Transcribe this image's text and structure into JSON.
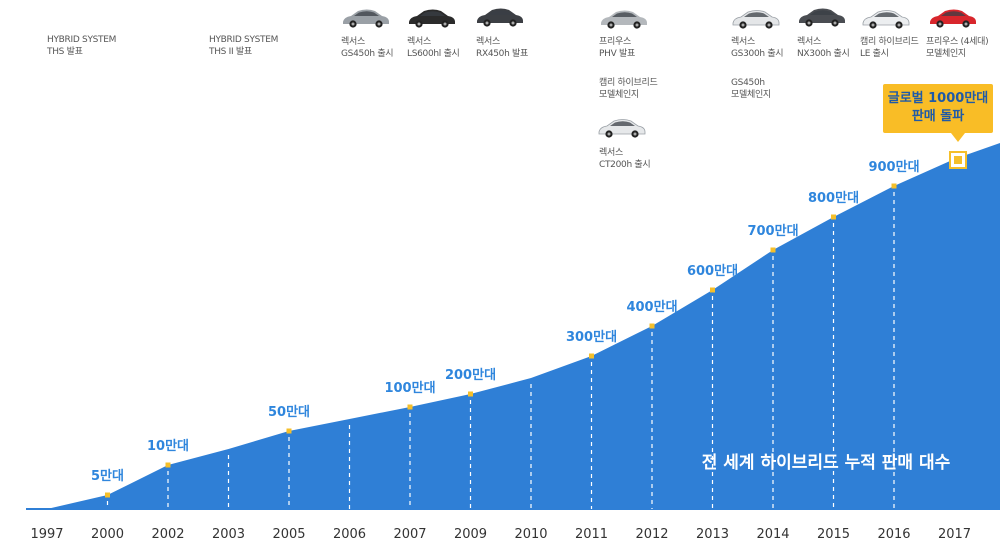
{
  "chart_data": {
    "type": "area",
    "title": "전 세계 하이브리드 누적 판매 대수",
    "x_categories": [
      "1997",
      "2000",
      "2002",
      "2003",
      "2005",
      "2006",
      "2007",
      "2009",
      "2010",
      "2011",
      "2012",
      "2013",
      "2014",
      "2015",
      "2016",
      "2017"
    ],
    "points": [
      {
        "x": "2000",
        "label": "5만대"
      },
      {
        "x": "2002",
        "label": "10만대"
      },
      {
        "x": "2005",
        "label": "50만대"
      },
      {
        "x": "2007",
        "label": "100만대"
      },
      {
        "x": "2009",
        "label": "200만대"
      },
      {
        "x": "2011",
        "label": "300만대"
      },
      {
        "x": "2012",
        "label": "400만대"
      },
      {
        "x": "2013",
        "label": "600만대"
      },
      {
        "x": "2014",
        "label": "700만대"
      },
      {
        "x": "2015",
        "label": "800만대"
      },
      {
        "x": "2016",
        "label": "900만대"
      },
      {
        "x": "2017",
        "label": "글로벌 1000만대\n판매 돌파"
      }
    ],
    "area_color": "#2f7fd6",
    "marker_color": "#f5bf2a",
    "label_color": "#2f86dd",
    "callout_color": "#f9bd26",
    "callout_text_color": "#1f5aa8"
  },
  "annotations": [
    {
      "text": "HYBRID SYSTEM\nTHS 발표"
    },
    {
      "text": "HYBRID SYSTEM\nTHS ⅠⅠ 발표"
    },
    {
      "text": "렉서스\nGS450h 출시"
    },
    {
      "text": "렉서스\nLS600hl 출시"
    },
    {
      "text": "렉서스\nRX450h 발표"
    },
    {
      "text": "프리우스\nPHV 발표"
    },
    {
      "text": "캠리 하이브리드\n모델체인지"
    },
    {
      "text": "렉서스\nCT200h 출시"
    },
    {
      "text": "렉서스\nGS300h 출시"
    },
    {
      "text": "GS450h\n모델체인지"
    },
    {
      "text": "렉서스\nNX300h 출시"
    },
    {
      "text": "캠리 하이브리드\nLE 출시"
    },
    {
      "text": "프리우스 (4세대)\n모델체인지"
    }
  ],
  "cars": [
    {
      "icon": "silver-sedan-icon",
      "color": "#9aa0a6"
    },
    {
      "icon": "black-sedan-icon",
      "color": "#2b2b2b"
    },
    {
      "icon": "dark-suv-icon",
      "color": "#3c3f44"
    },
    {
      "icon": "silver-hatchback-icon",
      "color": "#b4b8bc"
    },
    {
      "icon": "white-hatchback-icon",
      "color": "#e6e8ea"
    },
    {
      "icon": "white-sedan-icon",
      "color": "#e4e6e8"
    },
    {
      "icon": "dark-suv-icon",
      "color": "#4a4d52"
    },
    {
      "icon": "white-sedan-icon",
      "color": "#eceef0"
    },
    {
      "icon": "red-hatchback-icon",
      "color": "#d8262c"
    }
  ]
}
